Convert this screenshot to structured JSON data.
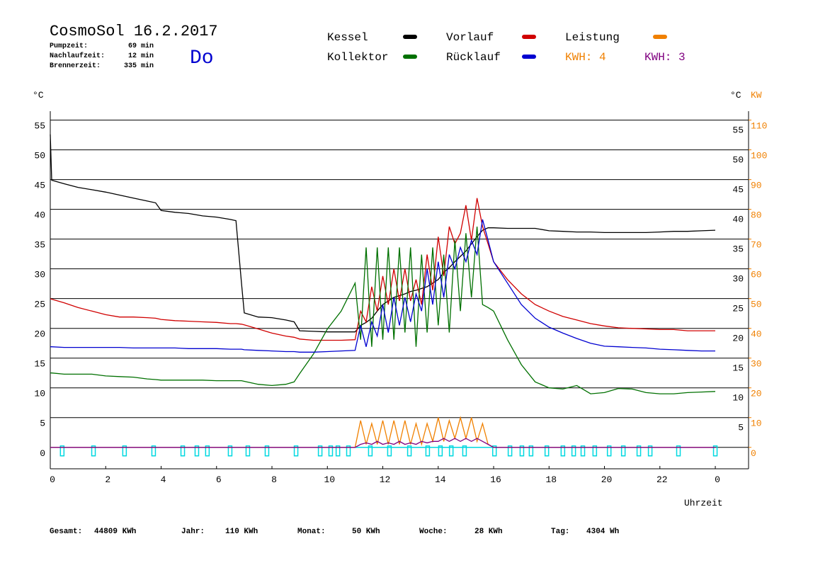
{
  "chart_data": {
    "type": "line",
    "title": "CosmoSol 16.2.2017",
    "weekday": "Do",
    "stats": [
      {
        "label": "Pumpzeit:",
        "value": "69 min"
      },
      {
        "label": "Nachlaufzeit:",
        "value": "12 min"
      },
      {
        "label": "Brennerzeit:",
        "value": "335 min"
      }
    ],
    "x": [
      0,
      0.05,
      0.5,
      1,
      1.5,
      2,
      2.5,
      3,
      3.5,
      3.8,
      4,
      4.5,
      5,
      5.5,
      6,
      6.5,
      6.7,
      6.9,
      7,
      7.5,
      8,
      8.5,
      8.8,
      9,
      9.5,
      10,
      10.5,
      11,
      11.2,
      11.4,
      11.6,
      11.8,
      12,
      12.2,
      12.4,
      12.6,
      12.8,
      13,
      13.2,
      13.4,
      13.6,
      13.8,
      14,
      14.2,
      14.4,
      14.6,
      14.8,
      15,
      15.2,
      15.4,
      15.6,
      15.8,
      16,
      16.5,
      17,
      17.5,
      18,
      18.5,
      19,
      19.5,
      20,
      20.5,
      21,
      21.5,
      22,
      22.5,
      23,
      23.5,
      24
    ],
    "xlim": [
      0,
      25.2
    ],
    "xticks": [
      0,
      2,
      4,
      6,
      8,
      10,
      12,
      14,
      16,
      18,
      20,
      22,
      {
        "value": 24,
        "label": "0"
      }
    ],
    "x_label": "Uhrzeit",
    "y_unit": "°C",
    "y2_unit": "KW",
    "ylim": [
      -3.6,
      56.5
    ],
    "yticks": [
      0,
      5,
      10,
      15,
      20,
      25,
      30,
      35,
      40,
      45,
      50,
      55
    ],
    "y2lim": [
      -7.2,
      113
    ],
    "y2ticks": [
      0,
      10,
      20,
      30,
      40,
      50,
      60,
      70,
      80,
      90,
      100,
      110
    ],
    "grid": true,
    "series": [
      {
        "name": "Kessel",
        "color": "#000000",
        "values": [
          52.6,
          44.9,
          44.3,
          43.7,
          43.3,
          42.9,
          42.4,
          41.9,
          41.4,
          41.1,
          39.8,
          39.5,
          39.3,
          38.9,
          38.7,
          38.3,
          38.1,
          27.6,
          22.6,
          21.9,
          21.8,
          21.4,
          21.1,
          19.6,
          19.5,
          19.4,
          19.4,
          19.4,
          20.5,
          21,
          21.7,
          22.9,
          24,
          24.6,
          25.2,
          25.5,
          25.8,
          26.2,
          26.4,
          26.7,
          27,
          27.6,
          28.2,
          29.4,
          30.2,
          31.2,
          32.1,
          33,
          34.2,
          35.4,
          36.5,
          36.9,
          36.9,
          36.8,
          36.8,
          36.8,
          36.4,
          36.3,
          36.2,
          36.2,
          36.1,
          36.1,
          36.1,
          36.1,
          36.2,
          36.3,
          36.3,
          36.4,
          36.5
        ]
      },
      {
        "name": "Vorlauf",
        "color": "#d00000",
        "values": [
          25,
          24.9,
          24.3,
          23.5,
          22.9,
          22.3,
          21.9,
          21.9,
          21.8,
          21.7,
          21.5,
          21.3,
          21.2,
          21.1,
          21,
          20.8,
          20.8,
          20.7,
          20.6,
          19.9,
          19.2,
          18.7,
          18.5,
          18.2,
          18,
          18,
          18,
          18.1,
          22.9,
          21.1,
          27,
          22.9,
          28.8,
          24,
          30,
          24.6,
          30,
          24.6,
          28.2,
          24,
          32.4,
          26.4,
          35.4,
          28.8,
          37.1,
          34.2,
          36,
          40.7,
          34.8,
          41.9,
          37.1,
          34.2,
          31.2,
          28.2,
          25.8,
          24,
          22.9,
          22,
          21.4,
          20.8,
          20.4,
          20.1,
          20,
          19.9,
          19.8,
          19.8,
          19.6,
          19.6,
          19.6
        ]
      },
      {
        "name": "Leistung",
        "color": "#f08000",
        "axis": "y2",
        "values": [
          0,
          0,
          0,
          0,
          0,
          0,
          0,
          0,
          0,
          0,
          0,
          0,
          0,
          0,
          0,
          0,
          0,
          0,
          0,
          0,
          0,
          0,
          0,
          0,
          0,
          0,
          0,
          0,
          9,
          1,
          8,
          1,
          9,
          1,
          9,
          1,
          9,
          1,
          8,
          1,
          8,
          2,
          10,
          2,
          9,
          3,
          10,
          3,
          10,
          2,
          8,
          1,
          0,
          0,
          0,
          0,
          0,
          0,
          0,
          0,
          0,
          0,
          0,
          0,
          0,
          0,
          0,
          0,
          0
        ]
      },
      {
        "name": "Kollektor",
        "color": "#007000",
        "values": [
          12.5,
          12.5,
          12.3,
          12.3,
          12.3,
          12,
          11.9,
          11.8,
          11.5,
          11.4,
          11.3,
          11.3,
          11.3,
          11.3,
          11.2,
          11.2,
          11.2,
          11.2,
          11.1,
          10.6,
          10.4,
          10.6,
          11,
          12.4,
          15.7,
          19.9,
          22.9,
          27.6,
          18.1,
          33.6,
          16.9,
          33.6,
          18.1,
          33.6,
          18.1,
          33.6,
          19.3,
          33.6,
          16.9,
          32.4,
          19.3,
          33.6,
          20.5,
          32.4,
          19.3,
          34.8,
          22.9,
          36,
          25.2,
          37.1,
          24,
          23.5,
          22.9,
          18.1,
          13.9,
          11,
          10,
          9.8,
          10.4,
          9,
          9.2,
          9.9,
          9.8,
          9.2,
          9,
          9,
          9.2,
          9.3,
          9.4
        ]
      },
      {
        "name": "Rücklauf",
        "color": "#0000d0",
        "values": [
          16.9,
          16.9,
          16.8,
          16.8,
          16.8,
          16.8,
          16.8,
          16.7,
          16.7,
          16.7,
          16.7,
          16.7,
          16.6,
          16.6,
          16.6,
          16.5,
          16.5,
          16.5,
          16.4,
          16.3,
          16.2,
          16.1,
          16.1,
          16,
          16,
          16.1,
          16.2,
          16.3,
          20.5,
          16.9,
          21.1,
          18.7,
          24,
          19.3,
          25.2,
          20.5,
          25.2,
          21.1,
          25.8,
          22.9,
          30,
          24,
          31.2,
          25.2,
          32.4,
          30,
          33.6,
          31.2,
          34.8,
          32.4,
          38.3,
          34.8,
          31.2,
          27.6,
          24,
          21.7,
          20.2,
          19.2,
          18.3,
          17.5,
          17,
          16.9,
          16.8,
          16.7,
          16.5,
          16.4,
          16.3,
          16.2,
          16.2
        ]
      },
      {
        "name": "KWH: 3",
        "color": "#800080",
        "axis": "y2",
        "values": [
          0,
          0,
          0,
          0,
          0,
          0,
          0,
          0,
          0,
          0,
          0,
          0,
          0,
          0,
          0,
          0,
          0,
          0,
          0,
          0,
          0,
          0,
          0,
          0,
          0,
          0,
          0,
          0,
          1,
          1.5,
          1,
          2,
          1,
          1.5,
          1,
          2,
          1,
          1.5,
          1,
          2,
          1.5,
          2,
          2,
          3,
          2,
          3,
          2,
          3,
          2,
          3,
          2,
          1,
          0,
          0,
          0,
          0,
          0,
          0,
          0,
          0,
          0,
          0,
          0,
          0,
          0,
          0,
          0,
          0,
          0
        ]
      }
    ],
    "annotations": [
      {
        "text": "KWH: 4",
        "color": "#f08000"
      }
    ],
    "pump_pulses": {
      "color": "#00d8e0",
      "x": [
        0.43,
        1.56,
        2.68,
        3.73,
        4.78,
        5.29,
        5.67,
        6.49,
        7.13,
        7.82,
        8.87,
        9.74,
        10.12,
        10.38,
        10.76,
        11.55,
        12.24,
        12.96,
        13.62,
        14.08,
        14.47,
        14.95,
        16.03,
        16.59,
        17.02,
        17.35,
        17.92,
        18.5,
        18.89,
        19.22,
        19.65,
        20.17,
        20.68,
        21.24,
        21.65,
        22.67,
        24
      ]
    },
    "totals": [
      {
        "label": "Gesamt:",
        "value": "44809 KWh"
      },
      {
        "label": "Jahr:",
        "value": "110 KWh"
      },
      {
        "label": "Monat:",
        "value": "50 KWh"
      },
      {
        "label": "Woche:",
        "value": "28 KWh"
      },
      {
        "label": "Tag:",
        "value": "4304 Wh"
      }
    ]
  }
}
